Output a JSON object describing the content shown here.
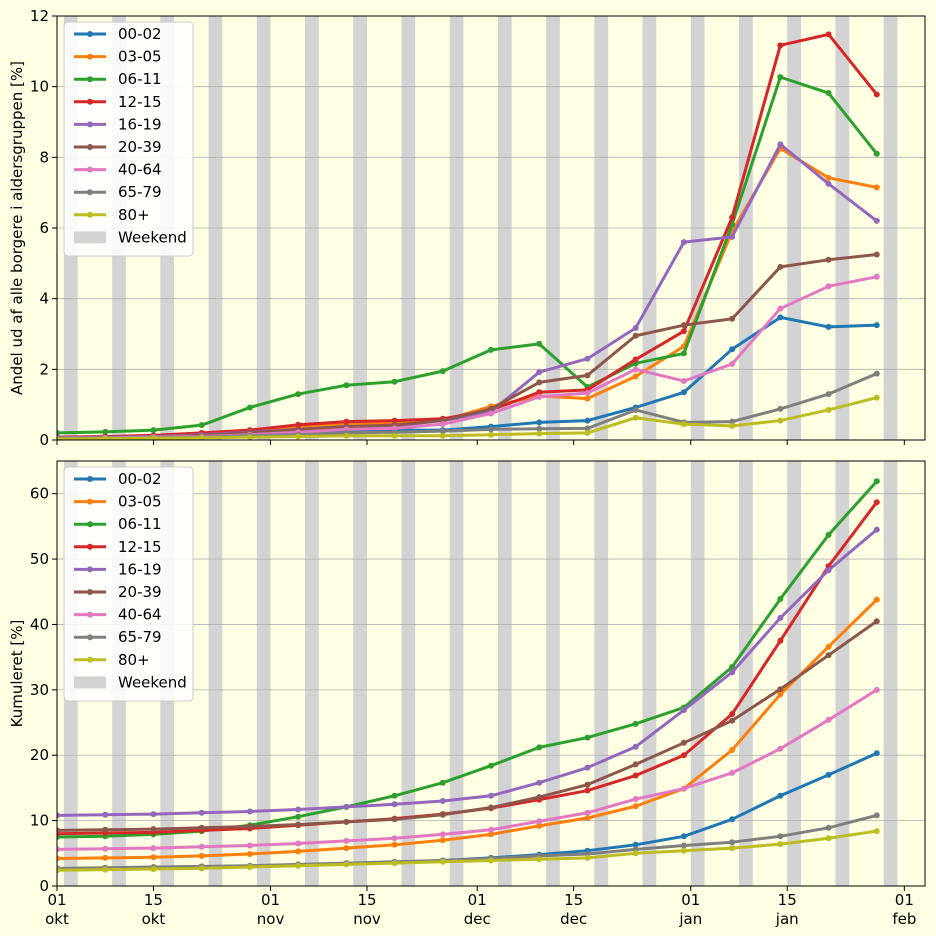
{
  "colors": {
    "background": "#ffffe4",
    "weekend": "#d3d3d3",
    "grid": "#b0b0b0",
    "series": [
      "#1f77b4",
      "#ff7f0e",
      "#2ca02c",
      "#d62728",
      "#9467bd",
      "#8c564b",
      "#e377c2",
      "#7f7f7f",
      "#bcbd22"
    ]
  },
  "chart_data": [
    {
      "type": "line",
      "ylabel": "Andel ud af alle borgere i aldersgruppen [%]",
      "xlabel": "",
      "x_range": [
        "2021-10-01",
        "2022-02-04"
      ],
      "ylim": [
        0,
        12
      ],
      "yticks": [
        0,
        2,
        4,
        6,
        8,
        10,
        12
      ],
      "grid": "horizontal",
      "legend_position": "top-left",
      "weekend_label": "Weekend",
      "x": [
        "2021-10-01",
        "2021-10-08",
        "2021-10-15",
        "2021-10-22",
        "2021-10-29",
        "2021-11-05",
        "2021-11-12",
        "2021-11-19",
        "2021-11-26",
        "2021-12-03",
        "2021-12-10",
        "2021-12-17",
        "2021-12-24",
        "2021-12-31",
        "2022-01-07",
        "2022-01-14",
        "2022-01-21",
        "2022-01-28"
      ],
      "series": [
        {
          "name": "00-02",
          "values": [
            0.05,
            0.06,
            0.08,
            0.12,
            0.18,
            0.22,
            0.26,
            0.28,
            0.28,
            0.38,
            0.5,
            0.55,
            0.92,
            1.35,
            2.57,
            3.47,
            3.2,
            3.25
          ]
        },
        {
          "name": "03-05",
          "values": [
            0.07,
            0.08,
            0.1,
            0.15,
            0.22,
            0.35,
            0.45,
            0.48,
            0.55,
            0.95,
            1.25,
            1.17,
            1.8,
            2.65,
            5.9,
            8.25,
            7.42,
            7.15
          ]
        },
        {
          "name": "06-11",
          "values": [
            0.2,
            0.23,
            0.28,
            0.42,
            0.92,
            1.3,
            1.55,
            1.65,
            1.95,
            2.55,
            2.72,
            1.5,
            2.17,
            2.45,
            6.1,
            10.27,
            9.82,
            8.1
          ]
        },
        {
          "name": "12-15",
          "values": [
            0.08,
            0.1,
            0.13,
            0.2,
            0.28,
            0.43,
            0.52,
            0.55,
            0.6,
            0.85,
            1.35,
            1.42,
            2.28,
            3.08,
            6.3,
            11.17,
            11.48,
            9.78
          ]
        },
        {
          "name": "16-19",
          "values": [
            0.07,
            0.08,
            0.1,
            0.15,
            0.22,
            0.3,
            0.38,
            0.4,
            0.55,
            0.8,
            1.92,
            2.3,
            3.17,
            5.6,
            5.75,
            8.37,
            7.25,
            6.2
          ]
        },
        {
          "name": "20-39",
          "values": [
            0.06,
            0.07,
            0.09,
            0.13,
            0.2,
            0.3,
            0.38,
            0.42,
            0.55,
            0.88,
            1.63,
            1.83,
            2.95,
            3.25,
            3.43,
            4.9,
            5.1,
            5.25
          ]
        },
        {
          "name": "40-64",
          "values": [
            0.05,
            0.06,
            0.08,
            0.1,
            0.15,
            0.22,
            0.3,
            0.33,
            0.45,
            0.75,
            1.22,
            1.33,
            2.0,
            1.67,
            2.15,
            3.72,
            4.35,
            4.62
          ]
        },
        {
          "name": "65-79",
          "values": [
            0.04,
            0.05,
            0.06,
            0.08,
            0.12,
            0.15,
            0.2,
            0.22,
            0.25,
            0.3,
            0.32,
            0.33,
            0.85,
            0.5,
            0.52,
            0.88,
            1.3,
            1.88
          ]
        },
        {
          "name": "80+",
          "values": [
            0.03,
            0.04,
            0.05,
            0.06,
            0.08,
            0.1,
            0.12,
            0.12,
            0.12,
            0.15,
            0.18,
            0.2,
            0.63,
            0.45,
            0.4,
            0.55,
            0.85,
            1.2
          ]
        }
      ]
    },
    {
      "type": "line",
      "ylabel": "Kumuleret [%]",
      "xlabel": "",
      "x_range": [
        "2021-10-01",
        "2022-02-04"
      ],
      "ylim": [
        0,
        65
      ],
      "yticks": [
        0,
        10,
        20,
        30,
        40,
        50,
        60
      ],
      "grid": "horizontal",
      "legend_position": "top-left",
      "weekend_label": "Weekend",
      "xtick_dates": [
        "2021-10-01",
        "2021-10-15",
        "2021-11-01",
        "2021-11-15",
        "2021-12-01",
        "2021-12-15",
        "2022-01-01",
        "2022-01-15",
        "2022-02-01"
      ],
      "xtick_labels": [
        [
          "01",
          "okt"
        ],
        [
          "15",
          "okt"
        ],
        [
          "01",
          "nov"
        ],
        [
          "15",
          "nov"
        ],
        [
          "01",
          "dec"
        ],
        [
          "15",
          "dec"
        ],
        [
          "01",
          "jan"
        ],
        [
          "15",
          "jan"
        ],
        [
          "01",
          "feb"
        ]
      ],
      "x": [
        "2021-10-01",
        "2021-10-08",
        "2021-10-15",
        "2021-10-22",
        "2021-10-29",
        "2021-11-05",
        "2021-11-12",
        "2021-11-19",
        "2021-11-26",
        "2021-12-03",
        "2021-12-10",
        "2021-12-17",
        "2021-12-24",
        "2021-12-31",
        "2022-01-07",
        "2022-01-14",
        "2022-01-21",
        "2022-01-28"
      ],
      "series": [
        {
          "name": "00-02",
          "values": [
            2.5,
            2.6,
            2.7,
            2.8,
            3.0,
            3.2,
            3.4,
            3.6,
            3.9,
            4.3,
            4.8,
            5.4,
            6.3,
            7.6,
            10.2,
            13.8,
            17.0,
            20.3
          ]
        },
        {
          "name": "03-05",
          "values": [
            4.2,
            4.3,
            4.4,
            4.6,
            4.9,
            5.3,
            5.8,
            6.3,
            7.0,
            7.9,
            9.2,
            10.4,
            12.2,
            14.9,
            20.8,
            29.3,
            36.6,
            43.8
          ]
        },
        {
          "name": "06-11",
          "values": [
            7.5,
            7.6,
            7.9,
            8.4,
            9.3,
            10.6,
            12.1,
            13.8,
            15.8,
            18.4,
            21.2,
            22.7,
            24.8,
            27.3,
            33.5,
            43.9,
            53.7,
            61.9
          ]
        },
        {
          "name": "12-15",
          "values": [
            8.0,
            8.1,
            8.2,
            8.5,
            8.8,
            9.3,
            9.8,
            10.3,
            11.0,
            11.9,
            13.2,
            14.6,
            16.9,
            20.0,
            26.3,
            37.5,
            48.9,
            58.7
          ]
        },
        {
          "name": "16-19",
          "values": [
            10.8,
            10.9,
            11.0,
            11.2,
            11.4,
            11.7,
            12.1,
            12.5,
            13.0,
            13.8,
            15.8,
            18.1,
            21.3,
            26.9,
            32.7,
            41.0,
            48.3,
            54.5
          ]
        },
        {
          "name": "20-39",
          "values": [
            8.5,
            8.6,
            8.7,
            8.9,
            9.1,
            9.4,
            9.8,
            10.2,
            10.9,
            12.0,
            13.6,
            15.5,
            18.6,
            21.9,
            25.3,
            30.1,
            35.3,
            40.5
          ]
        },
        {
          "name": "40-64",
          "values": [
            5.6,
            5.7,
            5.8,
            6.0,
            6.2,
            6.5,
            6.9,
            7.3,
            7.9,
            8.6,
            9.9,
            11.2,
            13.3,
            14.9,
            17.3,
            21.0,
            25.4,
            30.0
          ]
        },
        {
          "name": "65-79",
          "values": [
            2.7,
            2.8,
            2.9,
            3.0,
            3.1,
            3.3,
            3.5,
            3.7,
            3.9,
            4.2,
            4.6,
            4.9,
            5.6,
            6.2,
            6.7,
            7.6,
            8.9,
            10.8
          ]
        },
        {
          "name": "80+",
          "values": [
            2.4,
            2.5,
            2.6,
            2.7,
            2.9,
            3.1,
            3.3,
            3.5,
            3.7,
            3.9,
            4.1,
            4.3,
            5.0,
            5.4,
            5.8,
            6.4,
            7.3,
            8.4
          ]
        }
      ]
    }
  ]
}
